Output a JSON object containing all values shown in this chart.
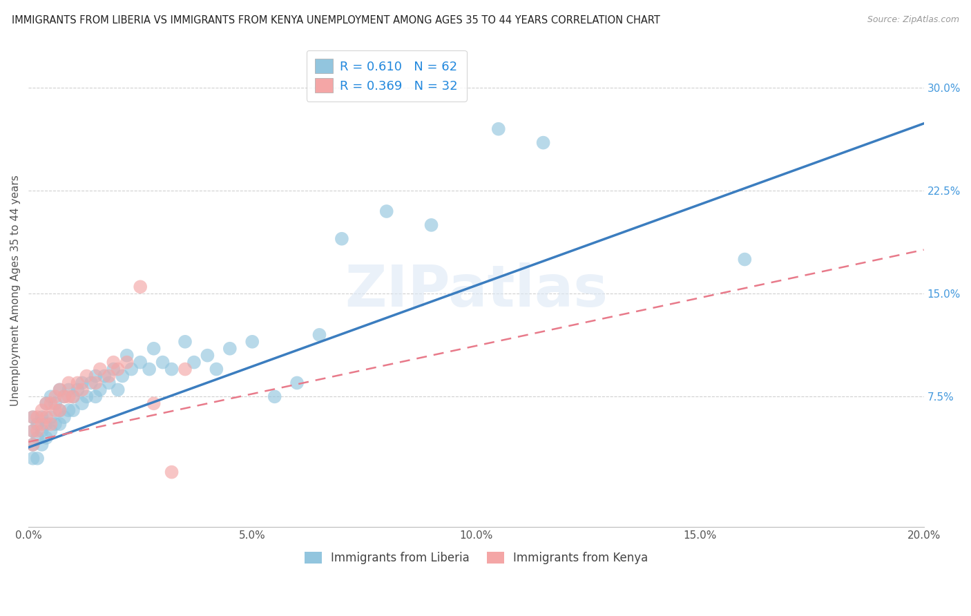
{
  "title": "IMMIGRANTS FROM LIBERIA VS IMMIGRANTS FROM KENYA UNEMPLOYMENT AMONG AGES 35 TO 44 YEARS CORRELATION CHART",
  "source": "Source: ZipAtlas.com",
  "ylabel": "Unemployment Among Ages 35 to 44 years",
  "xlim": [
    0.0,
    0.2
  ],
  "ylim": [
    -0.02,
    0.325
  ],
  "xticks": [
    0.0,
    0.05,
    0.1,
    0.15,
    0.2
  ],
  "xtick_labels": [
    "0.0%",
    "5.0%",
    "10.0%",
    "15.0%",
    "20.0%"
  ],
  "ytick_labels_right": [
    "7.5%",
    "15.0%",
    "22.5%",
    "30.0%"
  ],
  "yticks_right": [
    0.075,
    0.15,
    0.225,
    0.3
  ],
  "liberia_color": "#92c5de",
  "kenya_color": "#f4a6a6",
  "liberia_R": 0.61,
  "liberia_N": 62,
  "kenya_R": 0.369,
  "kenya_N": 32,
  "regression_liberia_slope": 1.18,
  "regression_liberia_intercept": 0.038,
  "regression_kenya_slope": 0.7,
  "regression_kenya_intercept": 0.042,
  "liberia_x": [
    0.001,
    0.001,
    0.001,
    0.001,
    0.002,
    0.002,
    0.002,
    0.003,
    0.003,
    0.003,
    0.004,
    0.004,
    0.004,
    0.005,
    0.005,
    0.005,
    0.006,
    0.006,
    0.007,
    0.007,
    0.007,
    0.008,
    0.008,
    0.009,
    0.009,
    0.01,
    0.01,
    0.011,
    0.012,
    0.012,
    0.013,
    0.014,
    0.015,
    0.015,
    0.016,
    0.017,
    0.018,
    0.019,
    0.02,
    0.021,
    0.022,
    0.023,
    0.025,
    0.027,
    0.028,
    0.03,
    0.032,
    0.035,
    0.037,
    0.04,
    0.042,
    0.045,
    0.05,
    0.055,
    0.06,
    0.065,
    0.07,
    0.08,
    0.09,
    0.105,
    0.115,
    0.16
  ],
  "liberia_y": [
    0.03,
    0.04,
    0.05,
    0.06,
    0.03,
    0.045,
    0.055,
    0.04,
    0.05,
    0.06,
    0.045,
    0.055,
    0.07,
    0.05,
    0.06,
    0.075,
    0.055,
    0.07,
    0.055,
    0.065,
    0.08,
    0.06,
    0.075,
    0.065,
    0.08,
    0.065,
    0.075,
    0.08,
    0.07,
    0.085,
    0.075,
    0.085,
    0.075,
    0.09,
    0.08,
    0.09,
    0.085,
    0.095,
    0.08,
    0.09,
    0.105,
    0.095,
    0.1,
    0.095,
    0.11,
    0.1,
    0.095,
    0.115,
    0.1,
    0.105,
    0.095,
    0.11,
    0.115,
    0.075,
    0.085,
    0.12,
    0.19,
    0.21,
    0.2,
    0.27,
    0.26,
    0.175
  ],
  "kenya_x": [
    0.001,
    0.001,
    0.001,
    0.002,
    0.002,
    0.003,
    0.003,
    0.004,
    0.004,
    0.005,
    0.005,
    0.006,
    0.006,
    0.007,
    0.007,
    0.008,
    0.009,
    0.009,
    0.01,
    0.011,
    0.012,
    0.013,
    0.015,
    0.016,
    0.018,
    0.019,
    0.02,
    0.022,
    0.025,
    0.028,
    0.032,
    0.035
  ],
  "kenya_y": [
    0.04,
    0.05,
    0.06,
    0.05,
    0.06,
    0.055,
    0.065,
    0.06,
    0.07,
    0.055,
    0.07,
    0.065,
    0.075,
    0.065,
    0.08,
    0.075,
    0.075,
    0.085,
    0.075,
    0.085,
    0.08,
    0.09,
    0.085,
    0.095,
    0.09,
    0.1,
    0.095,
    0.1,
    0.155,
    0.07,
    0.02,
    0.095
  ]
}
